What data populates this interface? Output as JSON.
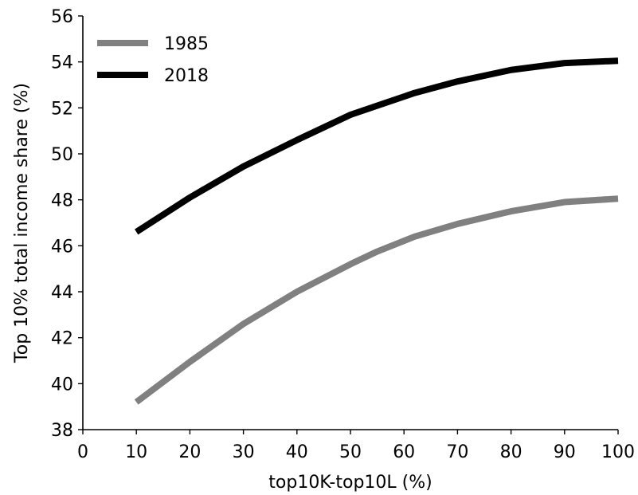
{
  "chart_data": {
    "type": "line",
    "title": "",
    "xlabel": "top10K-top10L (%)",
    "ylabel": "Top 10% total income share (%)",
    "xlim": [
      0,
      100
    ],
    "ylim": [
      38,
      56
    ],
    "xticks": [
      0,
      10,
      20,
      30,
      40,
      50,
      60,
      70,
      80,
      90,
      100
    ],
    "yticks": [
      38,
      40,
      42,
      44,
      46,
      48,
      50,
      52,
      54,
      56
    ],
    "grid": false,
    "legend": {
      "placement": "top-left"
    },
    "series": [
      {
        "name": "1985",
        "color": "#808080",
        "x": [
          10,
          20,
          30,
          40,
          50,
          55,
          62,
          70,
          80,
          90,
          100
        ],
        "y": [
          39.2,
          40.95,
          42.6,
          44.0,
          45.2,
          45.75,
          46.4,
          46.95,
          47.5,
          47.9,
          48.05
        ]
      },
      {
        "name": "2018",
        "color": "#000000",
        "x": [
          10,
          20,
          30,
          40,
          50,
          62,
          70,
          80,
          90,
          100
        ],
        "y": [
          46.6,
          48.1,
          49.45,
          50.6,
          51.7,
          52.65,
          53.15,
          53.65,
          53.95,
          54.05
        ]
      }
    ]
  }
}
